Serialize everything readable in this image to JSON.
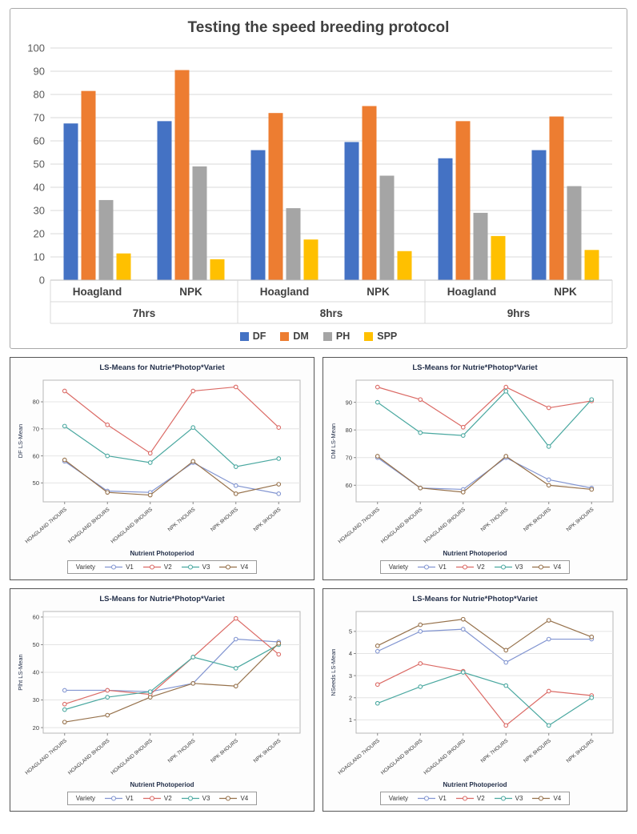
{
  "chart_data": [
    {
      "type": "bar",
      "title": "Testing the speed breeding protocol",
      "ylim": [
        0,
        100
      ],
      "yticks": [
        0,
        10,
        20,
        30,
        40,
        50,
        60,
        70,
        80,
        90,
        100
      ],
      "categories": [
        "Hoagland",
        "NPK",
        "Hoagland",
        "NPK",
        "Hoagland",
        "NPK"
      ],
      "group_row": [
        "7hrs",
        "8hrs",
        "9hrs"
      ],
      "series": [
        {
          "name": "DF",
          "color": "#4472C4",
          "values": [
            67.5,
            68.5,
            56,
            59.5,
            52.5,
            56
          ]
        },
        {
          "name": "DM",
          "color": "#ED7D31",
          "values": [
            81.5,
            90.5,
            72,
            75,
            68.5,
            70.5
          ]
        },
        {
          "name": "PH",
          "color": "#A5A5A5",
          "values": [
            34.5,
            49,
            31,
            45,
            29,
            40.5
          ]
        },
        {
          "name": "SPP",
          "color": "#FFC000",
          "values": [
            11.5,
            9,
            17.5,
            12.5,
            19,
            13
          ]
        }
      ]
    },
    {
      "type": "line",
      "title": "LS-Means for Nutrie*Photop*Variet",
      "ylabel": "DF LS-Mean",
      "xlabel": "Nutrient Photoperiod",
      "legend_title": "Variety",
      "categories": [
        "HOAGLAND 7HOURS",
        "HOAGLAND 8HOURS",
        "HOAGLAND 9HOURS",
        "NPK 7HOURS",
        "NPK 8HOURS",
        "NPK 9HOURS"
      ],
      "ylim": [
        43,
        88
      ],
      "yticks": [
        50,
        60,
        70,
        80
      ],
      "series": [
        {
          "name": "V1",
          "color": "#8295d1",
          "values": [
            58,
            47,
            46.5,
            57.5,
            49,
            46
          ]
        },
        {
          "name": "V2",
          "color": "#db6a65",
          "values": [
            84,
            71.5,
            61,
            84,
            85.5,
            70.5
          ]
        },
        {
          "name": "V3",
          "color": "#4aa8a0",
          "values": [
            71,
            60,
            57.5,
            70.5,
            56,
            59
          ]
        },
        {
          "name": "V4",
          "color": "#96714b",
          "values": [
            58.5,
            46.5,
            45.5,
            58,
            46,
            49.5
          ]
        }
      ]
    },
    {
      "type": "line",
      "title": "LS-Means for Nutrie*Photop*Variet",
      "ylabel": "DM LS-Mean",
      "xlabel": "Nutrient Photoperiod",
      "legend_title": "Variety",
      "categories": [
        "HOAGLAND 7HOURS",
        "HOAGLAND 8HOURS",
        "HOAGLAND 9HOURS",
        "NPK 7HOURS",
        "NPK 8HOURS",
        "NPK 9HOURS"
      ],
      "ylim": [
        54,
        98
      ],
      "yticks": [
        60,
        70,
        80,
        90
      ],
      "series": [
        {
          "name": "V1",
          "color": "#8295d1",
          "values": [
            70,
            59,
            58.5,
            70,
            62,
            59
          ]
        },
        {
          "name": "V2",
          "color": "#db6a65",
          "values": [
            95.5,
            91,
            81,
            95.5,
            88,
            90.5
          ]
        },
        {
          "name": "V3",
          "color": "#4aa8a0",
          "values": [
            90,
            79,
            78,
            94,
            74,
            91
          ]
        },
        {
          "name": "V4",
          "color": "#96714b",
          "values": [
            70.5,
            59,
            57.5,
            70.5,
            60,
            58.5
          ]
        }
      ]
    },
    {
      "type": "line",
      "title": "LS-Means for Nutrie*Photop*Variet",
      "ylabel": "Plht LS-Mean",
      "xlabel": "Nutrient Photoperiod",
      "legend_title": "Variety",
      "categories": [
        "HOAGLAND 7HOURS",
        "HOAGLAND 8HOURS",
        "HOAGLAND 9HOURS",
        "NPK 7HOURS",
        "NPK 8HOURS",
        "NPK 9HOURS"
      ],
      "ylim": [
        18,
        62
      ],
      "yticks": [
        20,
        30,
        40,
        50,
        60
      ],
      "series": [
        {
          "name": "V1",
          "color": "#8295d1",
          "values": [
            33.5,
            33.5,
            33,
            36,
            52,
            51
          ]
        },
        {
          "name": "V2",
          "color": "#db6a65",
          "values": [
            28.5,
            33.5,
            32,
            45.5,
            59.5,
            46.5
          ]
        },
        {
          "name": "V3",
          "color": "#4aa8a0",
          "values": [
            26.5,
            31,
            33,
            45.5,
            41.5,
            50
          ]
        },
        {
          "name": "V4",
          "color": "#96714b",
          "values": [
            22,
            24.5,
            31,
            36,
            35,
            50.5
          ]
        }
      ]
    },
    {
      "type": "line",
      "title": "LS-Means for Nutrie*Photop*Variet",
      "ylabel": "NSeeds LS-Mean",
      "xlabel": "Nutrient Photoperiod",
      "legend_title": "Variety",
      "categories": [
        "HOAGLAND 7HOURS",
        "HOAGLAND 8HOURS",
        "HOAGLAND 9HOURS",
        "NPK 7HOURS",
        "NPK 8HOURS",
        "NPK 9HOURS"
      ],
      "ylim": [
        0.4,
        5.9
      ],
      "yticks": [
        1,
        2,
        3,
        4,
        5
      ],
      "series": [
        {
          "name": "V1",
          "color": "#8295d1",
          "values": [
            4.1,
            5.0,
            5.1,
            3.6,
            4.65,
            4.65
          ]
        },
        {
          "name": "V2",
          "color": "#db6a65",
          "values": [
            2.6,
            3.55,
            3.2,
            0.75,
            2.3,
            2.1
          ]
        },
        {
          "name": "V3",
          "color": "#4aa8a0",
          "values": [
            1.75,
            2.5,
            3.15,
            2.55,
            0.75,
            2.0
          ]
        },
        {
          "name": "V4",
          "color": "#96714b",
          "values": [
            4.35,
            5.3,
            5.55,
            4.15,
            5.5,
            4.75
          ]
        }
      ]
    }
  ]
}
